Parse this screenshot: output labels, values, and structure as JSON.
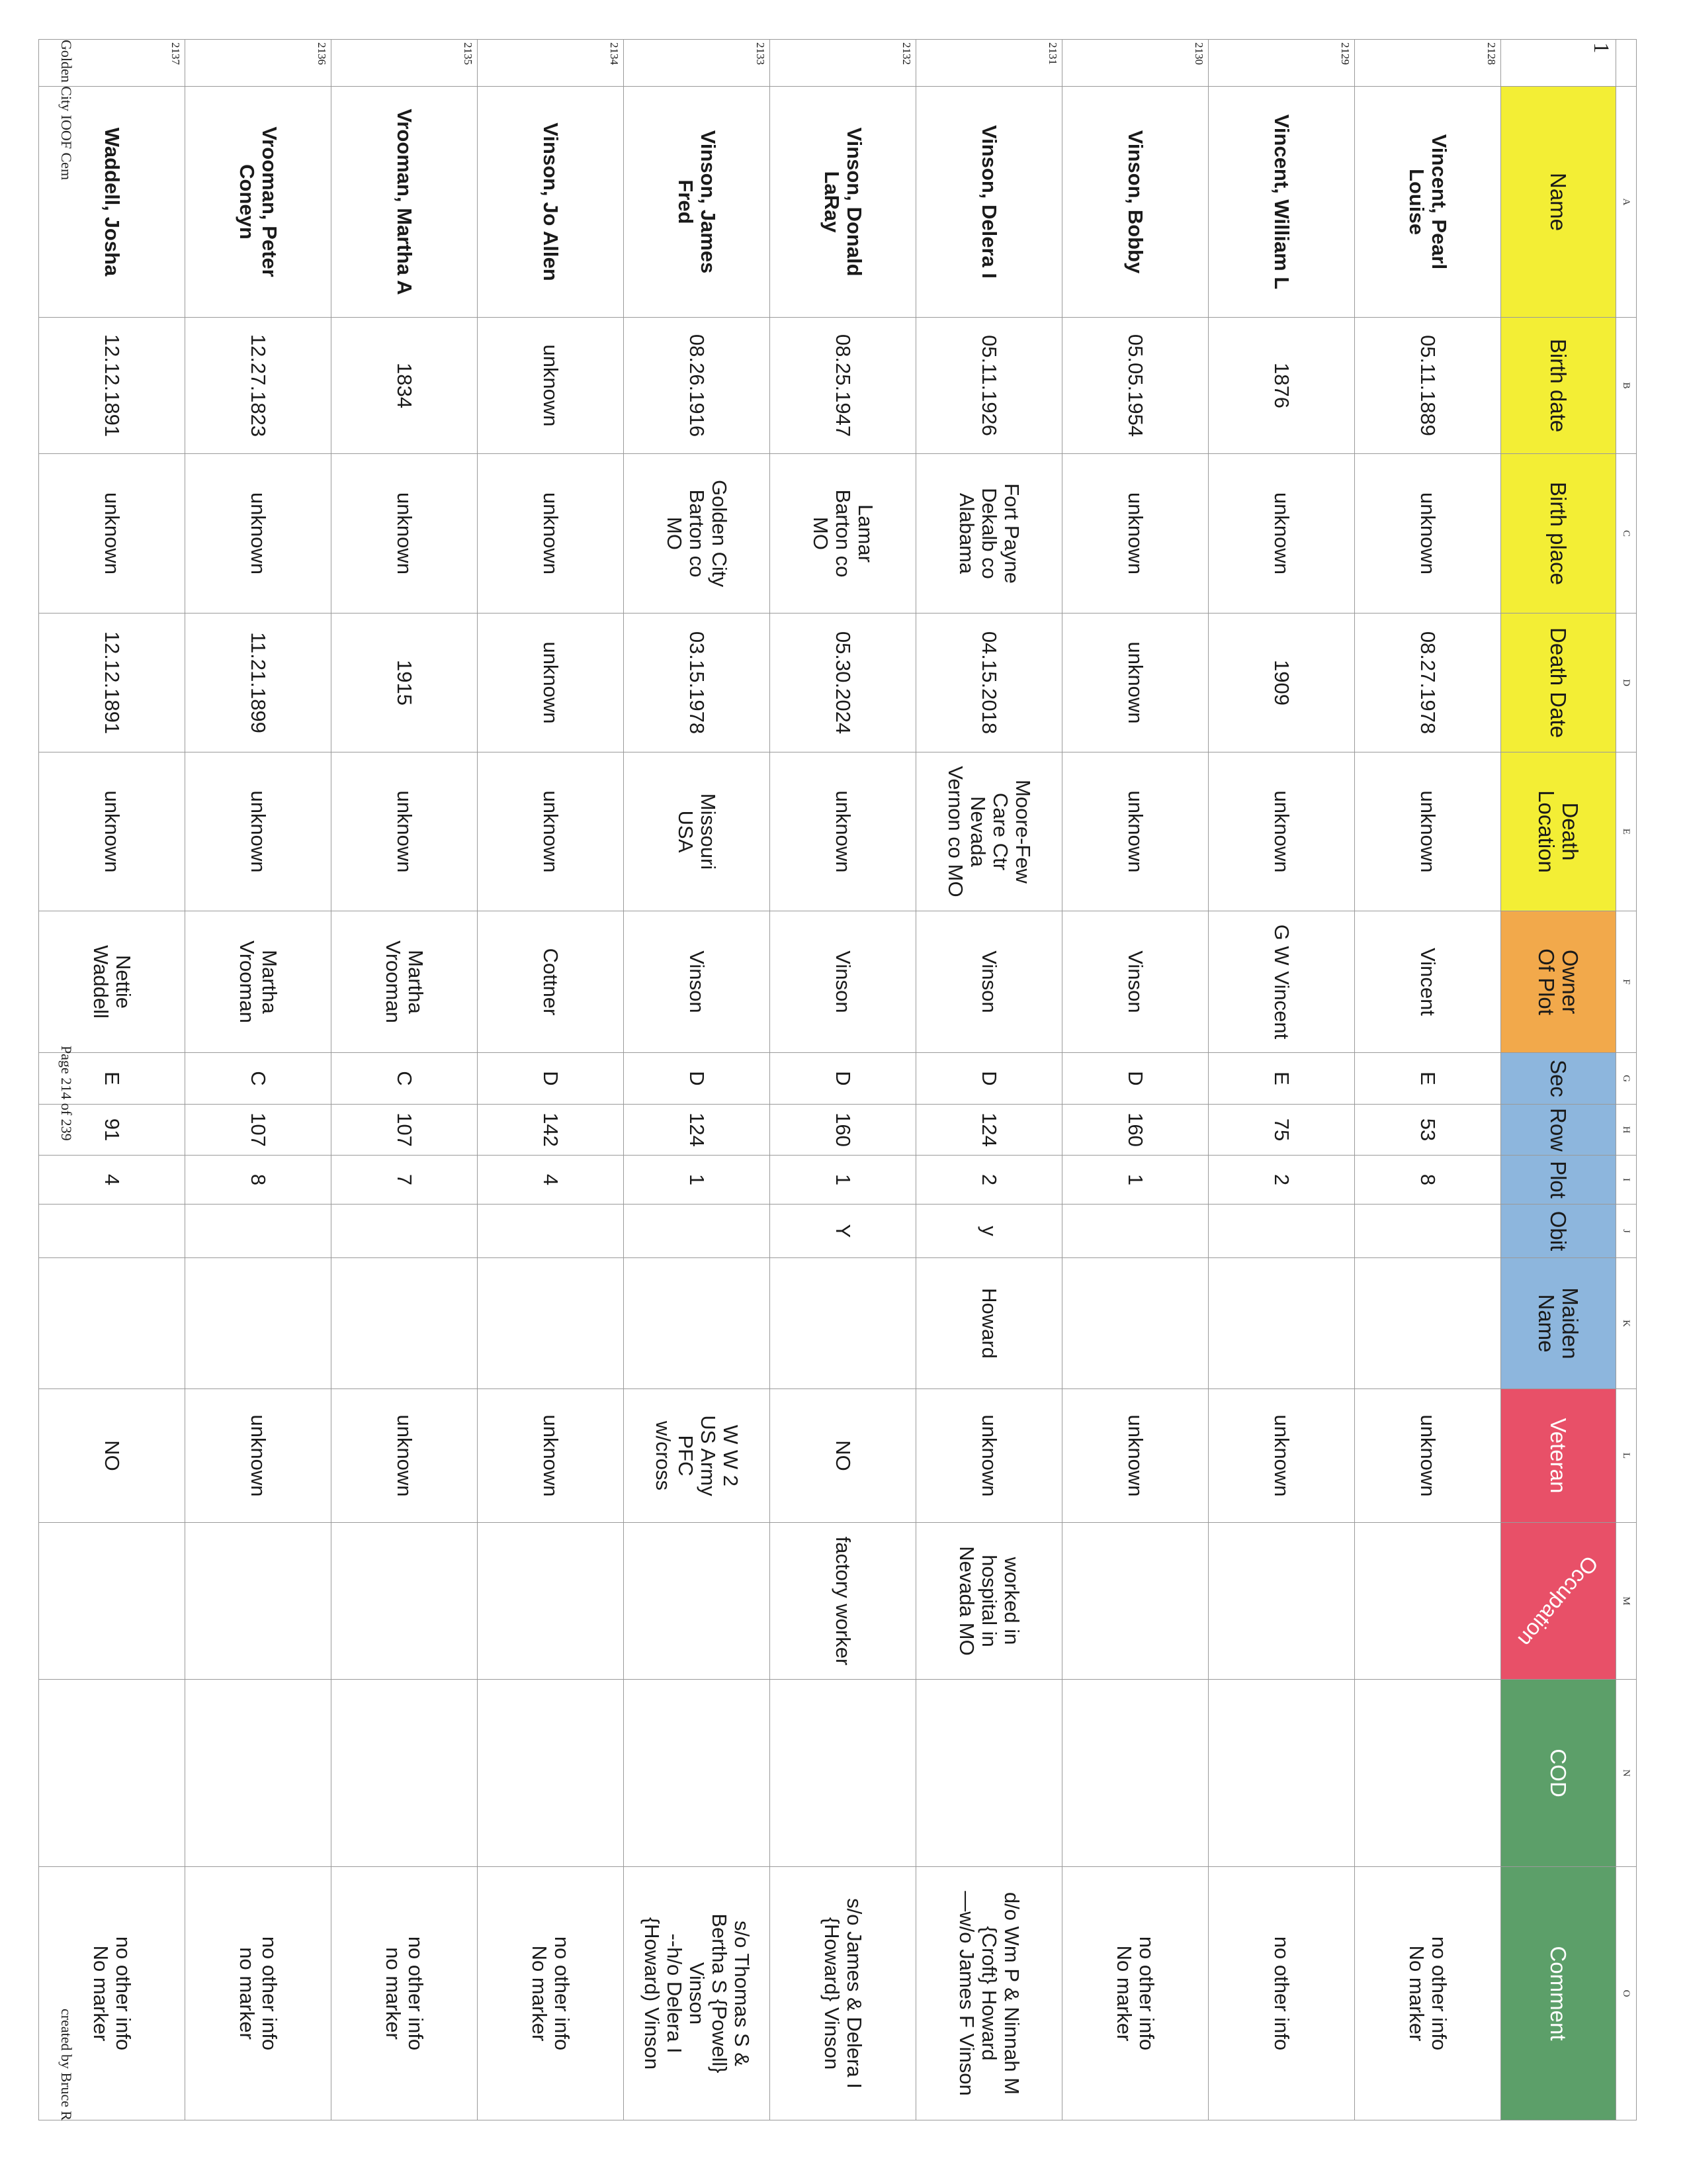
{
  "footer": {
    "left": "Golden City IOOF Cem",
    "center": "Page 214 of 239",
    "right": "created by Bruce R"
  },
  "colors": {
    "yellow": "#f3ee35",
    "orange": "#f2a94b",
    "blue": "#8db6dd",
    "red": "#e85068",
    "green": "#5c9f69"
  },
  "column_letters": [
    "",
    "A",
    "B",
    "C",
    "D",
    "E",
    "F",
    "G",
    "H",
    "I",
    "J",
    "K",
    "L",
    "M",
    "N",
    "O"
  ],
  "header": {
    "row_number": "1",
    "cells": [
      "Name",
      "Birth date",
      "Birth place",
      "Death Date",
      "Death\nLocation",
      "Owner\nOf Plot",
      "Sec",
      "Row",
      "Plot",
      "Obit",
      "Maiden\nName",
      "Veteran",
      "Occupation",
      "COD",
      "Comment"
    ]
  },
  "rows": [
    {
      "n": "2128",
      "cells": [
        "Vincent, Pearl\nLouise",
        "05.11.1889",
        "unknown",
        "08.27.1978",
        "unknown",
        "Vincent",
        "E",
        "53",
        "8",
        "",
        "",
        "unknown",
        "",
        "",
        "no other info\nNo marker"
      ]
    },
    {
      "n": "2129",
      "cells": [
        "Vincent, William L",
        "1876",
        "unknown",
        "1909",
        "unknown",
        "G W Vincent",
        "E",
        "75",
        "2",
        "",
        "",
        "unknown",
        "",
        "",
        "no other info"
      ]
    },
    {
      "n": "2130",
      "cells": [
        "Vinson, Bobby",
        "05.05.1954",
        "unknown",
        "unknown",
        "unknown",
        "Vinson",
        "D",
        "160",
        "1",
        "",
        "",
        "unknown",
        "",
        "",
        "no other info\nNo marker"
      ]
    },
    {
      "n": "2131",
      "cells": [
        "Vinson, Delera I",
        "05.11.1926",
        "Fort Payne\nDekalb co\nAlabama",
        "04.15.2018",
        "Moore-Few\nCare Ctr\nNevada\nVernon co MO",
        "Vinson",
        "D",
        "124",
        "2",
        "y",
        "Howard",
        "unknown",
        "worked in\nhospital in\nNevada MO",
        "",
        "d/o Wm P & Ninnah M\n{Croft} Howard\n—w/o James F Vinson"
      ]
    },
    {
      "n": "2132",
      "cells": [
        "Vinson, Donald\nLaRay",
        "08.25.1947",
        "Lamar\nBarton co\nMO",
        "05.30.2024",
        "unknown",
        "Vinson",
        "D",
        "160",
        "1",
        "Y",
        "",
        "NO",
        "factory worker",
        "",
        "s/o James & Delera I\n{Howard} Vinson"
      ]
    },
    {
      "n": "2133",
      "cells": [
        "Vinson, James\nFred",
        "08.26.1916",
        "Golden City\nBarton co\nMO",
        "03.15.1978",
        "Missouri\nUSA",
        "Vinson",
        "D",
        "124",
        "1",
        "",
        "",
        "W W 2\nUS Army\nPFC\nw/cross",
        "",
        "",
        "s/o Thomas S &\nBertha S {Powell}\nVinson\n--h/o Delera I\n{Howard) Vinson"
      ]
    },
    {
      "n": "2134",
      "cells": [
        "Vinson, Jo Allen",
        "unknown",
        "unknown",
        "unknown",
        "unknown",
        "Cottner",
        "D",
        "142",
        "4",
        "",
        "",
        "unknown",
        "",
        "",
        "no other info\nNo marker"
      ]
    },
    {
      "n": "2135",
      "cells": [
        "Vrooman, Martha A",
        "1834",
        "unknown",
        "1915",
        "unknown",
        "Martha\nVrooman",
        "C",
        "107",
        "7",
        "",
        "",
        "unknown",
        "",
        "",
        "no other info\nno marker"
      ]
    },
    {
      "n": "2136",
      "cells": [
        "Vrooman, Peter\nConeyn",
        "12.27.1823",
        "unknown",
        "11.21.1899",
        "unknown",
        "Martha\nVrooman",
        "C",
        "107",
        "8",
        "",
        "",
        "unknown",
        "",
        "",
        "no other info\nno marker"
      ]
    },
    {
      "n": "2137",
      "cells": [
        "Waddell, Josha",
        "12.12.1891",
        "unknown",
        "12.12.1891",
        "unknown",
        "Nettie\nWaddell",
        "E",
        "91",
        "4",
        "",
        "",
        "NO",
        "",
        "",
        "no other info\nNo marker"
      ]
    }
  ]
}
